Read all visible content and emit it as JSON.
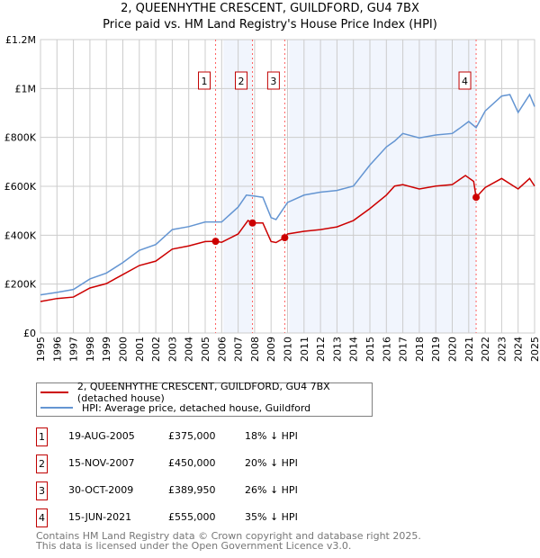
{
  "chart_data": {
    "type": "line",
    "title": "2, QUEENHYTHE CRESCENT, GUILDFORD, GU4 7BX",
    "subtitle": "Price paid vs. HM Land Registry's House Price Index (HPI)",
    "xlim": [
      1995,
      2025
    ],
    "ylim": [
      0,
      1200000
    ],
    "x_ticks": [
      "1995",
      "1996",
      "1997",
      "1998",
      "1999",
      "2000",
      "2001",
      "2002",
      "2003",
      "2004",
      "2005",
      "2006",
      "2007",
      "2008",
      "2009",
      "2010",
      "2011",
      "2012",
      "2013",
      "2014",
      "2015",
      "2016",
      "2017",
      "2018",
      "2019",
      "2020",
      "2021",
      "2022",
      "2023",
      "2024",
      "2025"
    ],
    "y_ticks": [
      {
        "v": 0,
        "label": "£0"
      },
      {
        "v": 200000,
        "label": "£200K"
      },
      {
        "v": 400000,
        "label": "£400K"
      },
      {
        "v": 600000,
        "label": "£600K"
      },
      {
        "v": 800000,
        "label": "£800K"
      },
      {
        "v": 1000000,
        "label": "£1M"
      },
      {
        "v": 1200000,
        "label": "£1.2M"
      }
    ],
    "grid": true,
    "shaded_ranges": [
      [
        2006.1,
        2007.87
      ],
      [
        2010.1,
        2021.45
      ]
    ],
    "series": [
      {
        "name": "2, QUEENHYTHE CRESCENT, GUILDFORD, GU4 7BX (detached house)",
        "color": "#cc0000",
        "x": [
          1995,
          1996,
          1997,
          1998,
          1999,
          2000,
          2001,
          2002,
          2003,
          2004,
          2005,
          2005.63,
          2006,
          2007,
          2007.6,
          2007.87,
          2008.5,
          2009,
          2009.3,
          2009.83,
          2010,
          2011,
          2012,
          2013,
          2014,
          2015,
          2016,
          2016.5,
          2017,
          2018,
          2019,
          2020,
          2020.8,
          2021.3,
          2021.45,
          2022,
          2023,
          2024,
          2024.7,
          2025
        ],
        "y": [
          129000,
          141000,
          147000,
          184000,
          202000,
          239000,
          276000,
          294000,
          343000,
          356000,
          374000,
          375000,
          371000,
          405000,
          460000,
          450000,
          450000,
          374000,
          370000,
          389950,
          405000,
          416000,
          423000,
          434000,
          460000,
          509000,
          564000,
          601000,
          607000,
          589000,
          601000,
          607000,
          644000,
          620000,
          555000,
          595000,
          632000,
          589000,
          632000,
          601000
        ]
      },
      {
        "name": "HPI: Average price, detached house, Guildford",
        "color": "#6495d2",
        "x": [
          1995,
          1996,
          1997,
          1998,
          1999,
          2000,
          2001,
          2002,
          2003,
          2004,
          2005,
          2006,
          2007,
          2007.5,
          2008,
          2008.5,
          2009,
          2009.3,
          2010,
          2011,
          2012,
          2013,
          2014,
          2015,
          2016,
          2016.5,
          2017,
          2018,
          2019,
          2020,
          2020.5,
          2021,
          2021.45,
          2022,
          2023,
          2023.5,
          2024,
          2024.7,
          2025
        ],
        "y": [
          156000,
          166000,
          178000,
          221000,
          245000,
          288000,
          338000,
          362000,
          423000,
          435000,
          454000,
          454000,
          515000,
          564000,
          560000,
          555000,
          472000,
          464000,
          534000,
          564000,
          576000,
          583000,
          601000,
          687000,
          761000,
          785000,
          816000,
          798000,
          810000,
          816000,
          840000,
          865000,
          840000,
          908000,
          969000,
          975000,
          902000,
          975000,
          926000
        ]
      }
    ],
    "sales": [
      {
        "n": "1",
        "x": 2005.63,
        "y": 375000,
        "date": "19-AUG-2005",
        "price": "£375,000",
        "hpi": "18% ↓ HPI"
      },
      {
        "n": "2",
        "x": 2007.87,
        "y": 450000,
        "date": "15-NOV-2007",
        "price": "£450,000",
        "hpi": "20% ↓ HPI"
      },
      {
        "n": "3",
        "x": 2009.83,
        "y": 389950,
        "date": "30-OCT-2009",
        "price": "£389,950",
        "hpi": "26% ↓ HPI"
      },
      {
        "n": "4",
        "x": 2021.45,
        "y": 555000,
        "date": "15-JUN-2021",
        "price": "£555,000",
        "hpi": "35% ↓ HPI"
      }
    ],
    "legend_placement": "below"
  },
  "footer": {
    "line1": "Contains HM Land Registry data © Crown copyright and database right 2025.",
    "line2": "This data is licensed under the Open Government Licence v3.0."
  }
}
